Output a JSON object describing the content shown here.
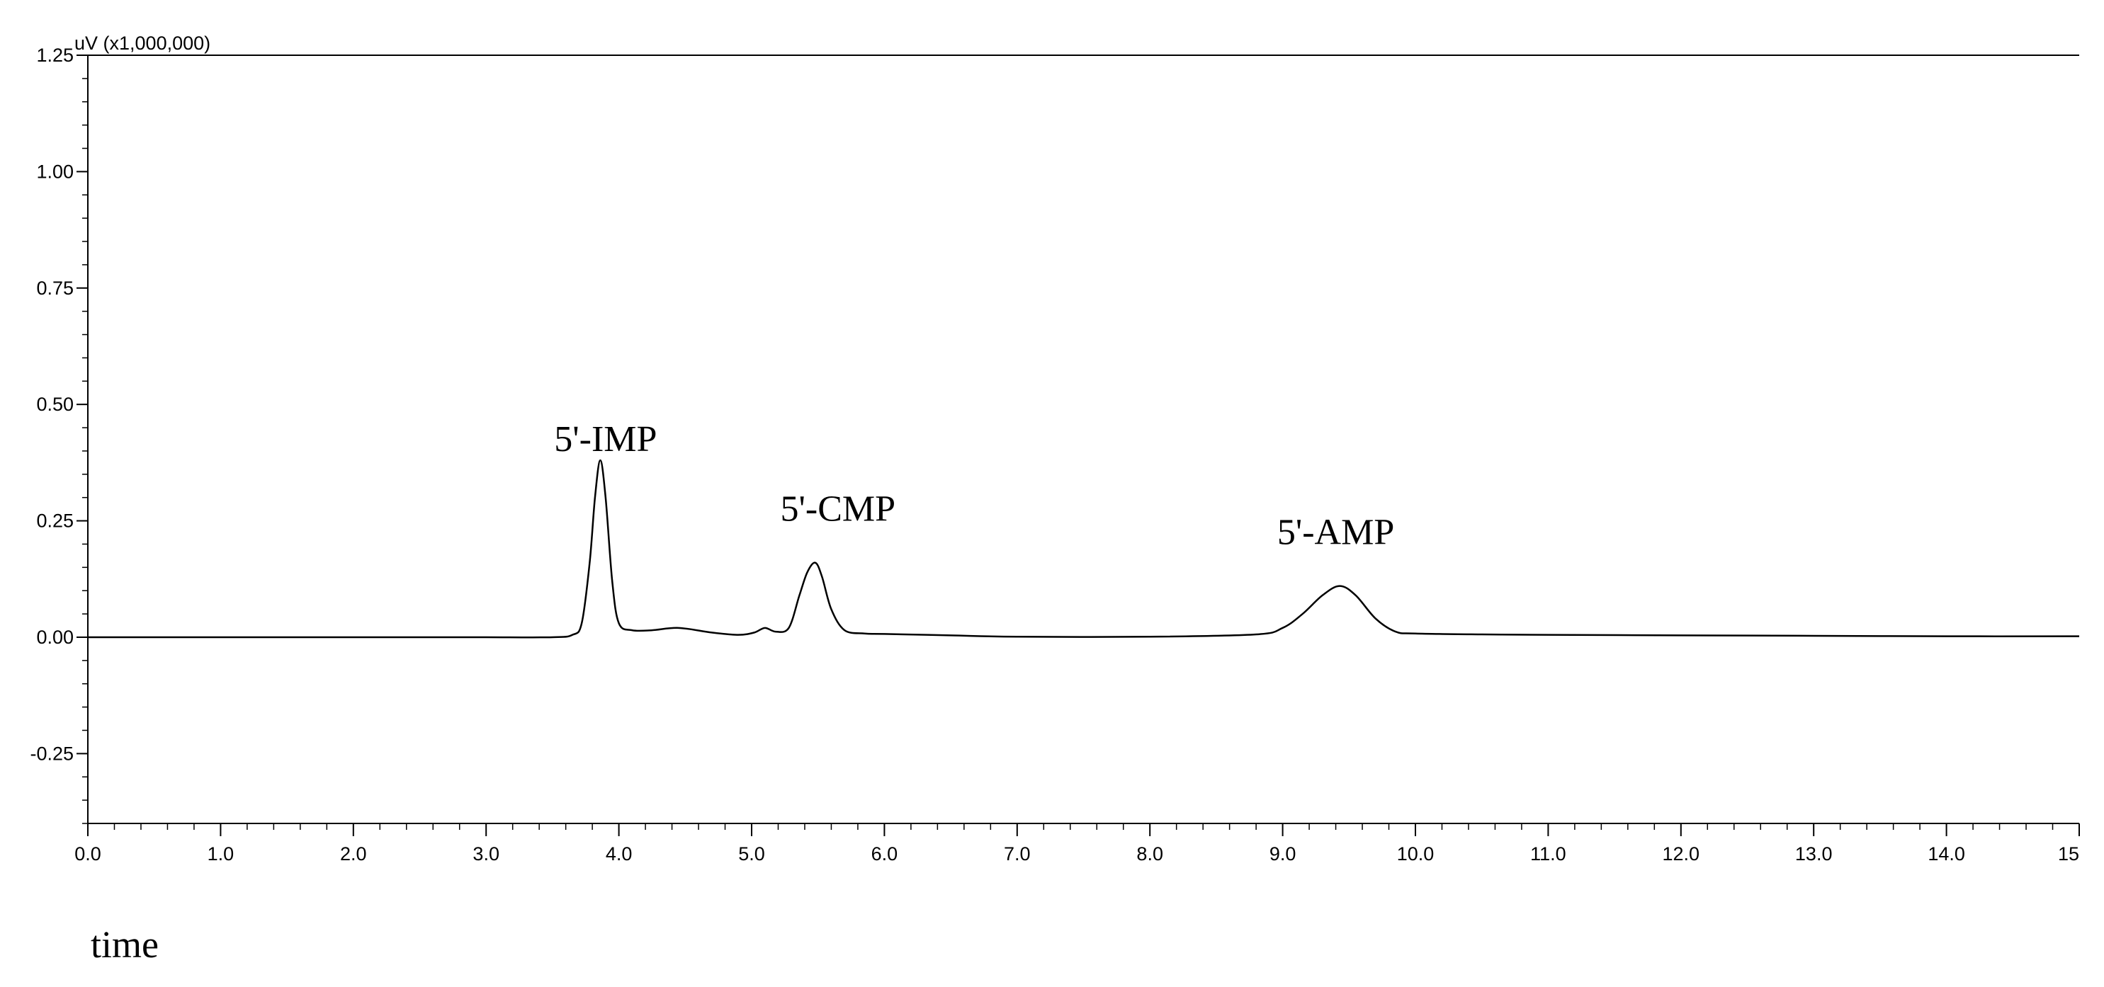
{
  "chart_data": {
    "type": "line",
    "title": "",
    "unit_label": "uV (x1,000,000)",
    "xlabel": "time",
    "ylabel": "",
    "xlim": [
      0,
      15
    ],
    "ylim": [
      -0.4,
      1.25
    ],
    "x_ticks": [
      0,
      1,
      2,
      3,
      4,
      5,
      6,
      7,
      8,
      9,
      10,
      11,
      12,
      13,
      14,
      15
    ],
    "x_tick_labels": [
      "0.0",
      "1.0",
      "2.0",
      "3.0",
      "4.0",
      "5.0",
      "6.0",
      "7.0",
      "8.0",
      "9.0",
      "10.0",
      "11.0",
      "12.0",
      "13.0",
      "14.0",
      "15"
    ],
    "y_ticks": [
      1.25,
      1.0,
      0.75,
      0.5,
      0.25,
      0.0,
      -0.25
    ],
    "y_tick_labels": [
      "1.25",
      "1.00",
      "0.75",
      "0.50",
      "0.25",
      "0.00",
      "-0.25"
    ],
    "grid": false,
    "series": [
      {
        "x": [
          0,
          0.5,
          1,
          1.5,
          2,
          2.5,
          3,
          3.5,
          3.65,
          3.72,
          3.78,
          3.82,
          3.86,
          3.9,
          3.95,
          4.0,
          4.1,
          4.25,
          4.45,
          4.7,
          4.9,
          5.02,
          5.1,
          5.18,
          5.28,
          5.36,
          5.42,
          5.48,
          5.53,
          5.6,
          5.7,
          5.85,
          6.0,
          6.5,
          7.0,
          8.0,
          8.8,
          9.0,
          9.15,
          9.3,
          9.43,
          9.55,
          9.7,
          9.85,
          10.0,
          10.5,
          11.0,
          12.0,
          13.0,
          14.0,
          15.0
        ],
        "y": [
          0.0,
          0.0,
          0.0,
          0.0,
          0.0,
          0.0,
          0.0,
          0.0,
          0.005,
          0.03,
          0.16,
          0.3,
          0.38,
          0.3,
          0.12,
          0.03,
          0.015,
          0.015,
          0.02,
          0.01,
          0.005,
          0.01,
          0.02,
          0.012,
          0.02,
          0.09,
          0.14,
          0.16,
          0.13,
          0.06,
          0.015,
          0.008,
          0.007,
          0.004,
          0.001,
          0.001,
          0.006,
          0.02,
          0.05,
          0.09,
          0.11,
          0.09,
          0.04,
          0.012,
          0.008,
          0.006,
          0.005,
          0.004,
          0.003,
          0.002,
          0.002
        ]
      }
    ],
    "annotations": [
      {
        "text": "5'-IMP",
        "x": 3.9,
        "y": 0.4
      },
      {
        "text": "5'-CMP",
        "x": 5.65,
        "y": 0.25
      },
      {
        "text": "5'-AMP",
        "x": 9.4,
        "y": 0.2
      }
    ]
  }
}
